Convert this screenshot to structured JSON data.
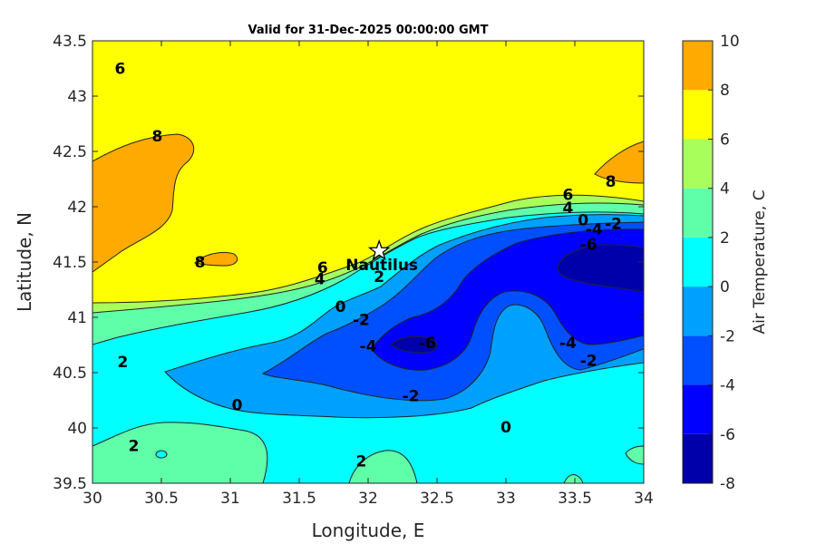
{
  "chart_data": {
    "type": "contour",
    "title": "Valid for 31-Dec-2025 00:00:00 GMT",
    "xlabel": "Longitude, E",
    "ylabel": "Latitude, N",
    "xlim": [
      30,
      34
    ],
    "ylim": [
      39.5,
      43.5
    ],
    "xticks": [
      "30",
      "30.5",
      "31",
      "31.5",
      "32",
      "32.5",
      "33",
      "33.5",
      "34"
    ],
    "yticks": [
      "39.5",
      "40",
      "40.5",
      "41",
      "41.5",
      "42",
      "42.5",
      "43",
      "43.5"
    ],
    "colorbar": {
      "label": "Air Temperature, C",
      "levels": [
        -8,
        -6,
        -4,
        -2,
        0,
        2,
        4,
        6,
        8,
        10
      ],
      "ticks": [
        "-8",
        "-6",
        "-4",
        "-2",
        "0",
        "2",
        "4",
        "6",
        "8",
        "10"
      ],
      "colors": [
        "#0000aa",
        "#0000ff",
        "#0050ff",
        "#00a0ff",
        "#00ffff",
        "#5fffaa",
        "#a8ff5c",
        "#ffff00",
        "#ffaa00",
        "#ff5500"
      ]
    },
    "contour_labels": [
      {
        "text": "6",
        "lon": 30.2,
        "lat": 43.25
      },
      {
        "text": "8",
        "lon": 30.47,
        "lat": 42.64
      },
      {
        "text": "8",
        "lon": 30.78,
        "lat": 41.5
      },
      {
        "text": "2",
        "lon": 30.22,
        "lat": 40.6
      },
      {
        "text": "0",
        "lon": 31.05,
        "lat": 40.21
      },
      {
        "text": "2",
        "lon": 30.3,
        "lat": 39.84
      },
      {
        "text": "2",
        "lon": 31.95,
        "lat": 39.7
      },
      {
        "text": "6",
        "lon": 31.67,
        "lat": 41.45
      },
      {
        "text": "4",
        "lon": 31.65,
        "lat": 41.35
      },
      {
        "text": "2",
        "lon": 32.08,
        "lat": 41.37
      },
      {
        "text": "0",
        "lon": 31.8,
        "lat": 41.1
      },
      {
        "text": "-2",
        "lon": 31.95,
        "lat": 40.98
      },
      {
        "text": "-4",
        "lon": 32.0,
        "lat": 40.74
      },
      {
        "text": "-6",
        "lon": 32.43,
        "lat": 40.77
      },
      {
        "text": "-2",
        "lon": 32.31,
        "lat": 40.29
      },
      {
        "text": "0",
        "lon": 33.0,
        "lat": 40.01
      },
      {
        "text": "6",
        "lon": 33.45,
        "lat": 42.11
      },
      {
        "text": "4",
        "lon": 33.45,
        "lat": 41.99
      },
      {
        "text": "0",
        "lon": 33.56,
        "lat": 41.88
      },
      {
        "text": "-4",
        "lon": 33.64,
        "lat": 41.8
      },
      {
        "text": "-2",
        "lon": 33.78,
        "lat": 41.85
      },
      {
        "text": "-6",
        "lon": 33.6,
        "lat": 41.66
      },
      {
        "text": "8",
        "lon": 33.76,
        "lat": 42.23
      },
      {
        "text": "-4",
        "lon": 33.45,
        "lat": 40.77
      },
      {
        "text": "-2",
        "lon": 33.6,
        "lat": 40.61
      }
    ],
    "marker": {
      "label": "Nautilus",
      "lon": 32.08,
      "lat": 41.6,
      "symbol": "star"
    }
  }
}
